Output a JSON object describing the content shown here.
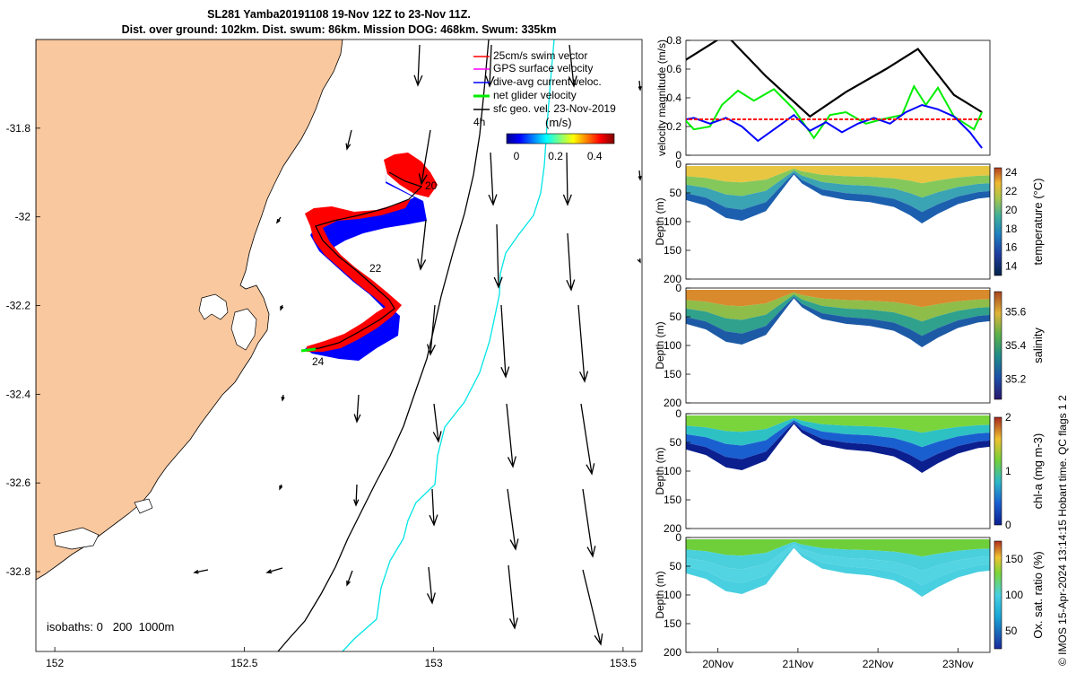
{
  "title": {
    "line1": "SL281 Yamba20191108 19-Nov 12Z to 23-Nov 11Z.",
    "line2": "Dist. over ground: 102km. Dist. swum: 86km. Mission DOG: 468km. Swum: 335km"
  },
  "credit": "© IMOS 15-Apr-2024 13:14:15 Hobart time. QC flags 1  2",
  "colors": {
    "land": "#f9c89f",
    "swim_vector": "#ff0000",
    "gps_velocity": "#ff00ff",
    "current": "#0000ff",
    "glider_velocity": "#00ee00",
    "isobath_200": "#000000",
    "isobath_1000": "#00e5e5"
  },
  "chart_data": [
    {
      "type": "scatter",
      "subtype": "map",
      "x_ticks": [
        "152",
        "152.5",
        "153",
        "153.5"
      ],
      "y_ticks": [
        "-31.8",
        "-32",
        "-32.2",
        "-32.4",
        "-32.6",
        "-32.8"
      ],
      "xlim": [
        151.95,
        153.55
      ],
      "ylim": [
        -32.98,
        -31.6
      ],
      "legend": [
        "25cm/s swim vector",
        "GPS surface velocity",
        "dive-avg current veloc.",
        "net glider velocity",
        "sfc geo. vel. 23-Nov-2019"
      ],
      "legend_note": "4h",
      "legend_placement": "top-right",
      "colorbar": {
        "label": "(m/s)",
        "ticks": [
          "0",
          "0.2",
          "0.4"
        ],
        "range": [
          -0.05,
          0.5
        ]
      },
      "annotations": [
        "20",
        "22",
        "24"
      ],
      "isobaths_label": "isobaths: 0   200  1000m"
    },
    {
      "type": "line",
      "ylabel": "velocity magnitude (m/s)",
      "ylim": [
        0,
        0.8
      ],
      "y_ticks": [
        "0",
        "0.2",
        "0.4",
        "0.6",
        "0.8"
      ],
      "series": [
        {
          "color": "#000000",
          "x": [
            19.5,
            20.1,
            20.6,
            21.15,
            21.6,
            22.1,
            22.5,
            22.95,
            23.3
          ],
          "values": [
            0.63,
            0.84,
            0.55,
            0.27,
            0.44,
            0.6,
            0.74,
            0.42,
            0.3
          ]
        },
        {
          "color": "#00ee00",
          "x": [
            19.5,
            19.7,
            19.9,
            20.05,
            20.25,
            20.45,
            20.7,
            20.95,
            21.2,
            21.4,
            21.6,
            21.85,
            22.05,
            22.3,
            22.45,
            22.6,
            22.75,
            22.95,
            23.2,
            23.3
          ],
          "values": [
            0.3,
            0.18,
            0.2,
            0.35,
            0.45,
            0.38,
            0.46,
            0.32,
            0.12,
            0.28,
            0.3,
            0.22,
            0.25,
            0.28,
            0.48,
            0.35,
            0.47,
            0.27,
            0.18,
            0.3
          ]
        },
        {
          "color": "#0000ff",
          "x": [
            19.5,
            19.7,
            19.9,
            20.1,
            20.3,
            20.5,
            20.75,
            20.95,
            21.15,
            21.35,
            21.55,
            21.75,
            21.95,
            22.15,
            22.35,
            22.55,
            22.75,
            22.95,
            23.15,
            23.3
          ],
          "values": [
            0.24,
            0.26,
            0.22,
            0.26,
            0.2,
            0.1,
            0.2,
            0.28,
            0.17,
            0.23,
            0.16,
            0.22,
            0.26,
            0.22,
            0.3,
            0.35,
            0.32,
            0.27,
            0.16,
            0.05
          ]
        },
        {
          "color": "#ff0000",
          "x": [
            19.5,
            23.3
          ],
          "values": [
            0.25,
            0.25
          ]
        }
      ]
    },
    {
      "type": "heatmap",
      "ylabel": "Depth (m)",
      "colorbar_label": "temperature (°C)",
      "y_ticks": [
        "0",
        "50",
        "100",
        "150",
        "200"
      ],
      "ylim": [
        200,
        0
      ],
      "colorbar_ticks": [
        "14",
        "16",
        "18",
        "20",
        "22",
        "24"
      ],
      "colorbar_range": [
        13,
        24.5
      ]
    },
    {
      "type": "heatmap",
      "ylabel": "Depth (m)",
      "colorbar_label": "salinity",
      "y_ticks": [
        "0",
        "50",
        "100",
        "150",
        "200"
      ],
      "ylim": [
        200,
        0
      ],
      "colorbar_ticks": [
        "35.2",
        "35.4",
        "35.6"
      ],
      "colorbar_range": [
        35.08,
        35.72
      ]
    },
    {
      "type": "heatmap",
      "ylabel": "Depth (m)",
      "colorbar_label": "chl-a (mg m-3)",
      "y_ticks": [
        "0",
        "50",
        "100",
        "150",
        "200"
      ],
      "ylim": [
        200,
        0
      ],
      "colorbar_ticks": [
        "0",
        "1",
        "2"
      ],
      "colorbar_range": [
        0,
        2
      ]
    },
    {
      "type": "heatmap",
      "ylabel": "Depth (m)",
      "colorbar_label": "Ox. sat. ratio (%)",
      "y_ticks": [
        "0",
        "50",
        "100",
        "150",
        "200"
      ],
      "ylim": [
        200,
        0
      ],
      "colorbar_ticks": [
        "50",
        "100",
        "150"
      ],
      "colorbar_range": [
        25,
        175
      ],
      "x_ticks": [
        "20Nov",
        "21Nov",
        "22Nov",
        "23Nov"
      ]
    }
  ]
}
